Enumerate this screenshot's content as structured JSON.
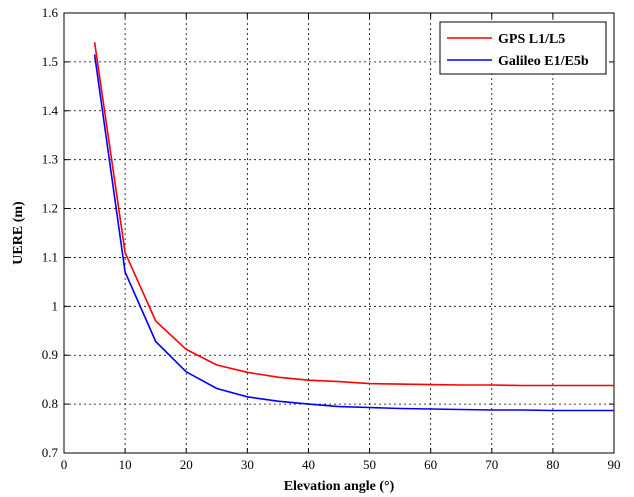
{
  "chart_data": {
    "type": "line",
    "title": "",
    "xlabel": "Elevation angle (°)",
    "ylabel": "UERE (m)",
    "xlim": [
      0,
      90
    ],
    "ylim": [
      0.7,
      1.6
    ],
    "xticks": [
      "0",
      "10",
      "20",
      "30",
      "40",
      "50",
      "60",
      "70",
      "80",
      "90"
    ],
    "yticks": [
      "0.7",
      "0.8",
      "0.9",
      "1",
      "1.1",
      "1.2",
      "1.3",
      "1.4",
      "1.5",
      "1.6"
    ],
    "grid": true,
    "legend_position": "top-right",
    "x": [
      5,
      10,
      15,
      20,
      25,
      30,
      35,
      40,
      45,
      50,
      55,
      60,
      65,
      70,
      75,
      80,
      85,
      90
    ],
    "series": [
      {
        "name": "GPS L1/L5",
        "color": "#ff0000",
        "values": [
          1.54,
          1.11,
          0.97,
          0.912,
          0.88,
          0.865,
          0.855,
          0.849,
          0.846,
          0.842,
          0.841,
          0.84,
          0.839,
          0.839,
          0.838,
          0.838,
          0.838,
          0.838
        ]
      },
      {
        "name": "Galileo E1/E5b",
        "color": "#0000ff",
        "values": [
          1.515,
          1.07,
          0.928,
          0.866,
          0.832,
          0.815,
          0.806,
          0.8,
          0.795,
          0.793,
          0.791,
          0.79,
          0.789,
          0.788,
          0.788,
          0.787,
          0.787,
          0.787
        ]
      }
    ]
  }
}
